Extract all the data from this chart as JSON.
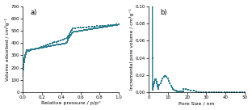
{
  "panel_a": {
    "label": "a)",
    "xlabel": "Relative pressure / p/p°",
    "ylabel": "Volume adsorbed / cm³g⁻¹",
    "xlim": [
      0,
      1.0
    ],
    "ylim": [
      0,
      700
    ],
    "yticks": [
      0,
      100,
      200,
      300,
      400,
      500,
      600,
      700
    ],
    "xticks": [
      0.0,
      0.2,
      0.4,
      0.6,
      0.8,
      1.0
    ]
  },
  "panel_b": {
    "label": "b)",
    "xlabel": "Pore Size / nm",
    "ylabel": "Incremental pore volume / cm³g⁻¹",
    "xlim": [
      0,
      50
    ],
    "ylim": [
      0,
      0.1
    ],
    "yticks": [
      0.0,
      0.02,
      0.04,
      0.06,
      0.08,
      0.1
    ],
    "xticks": [
      0,
      10,
      20,
      30,
      40,
      50
    ]
  },
  "figure_bg": "#ffffff",
  "line_color": "#2a7b8e",
  "marker": "s",
  "markersize": 1.8,
  "linewidth": 0.5
}
